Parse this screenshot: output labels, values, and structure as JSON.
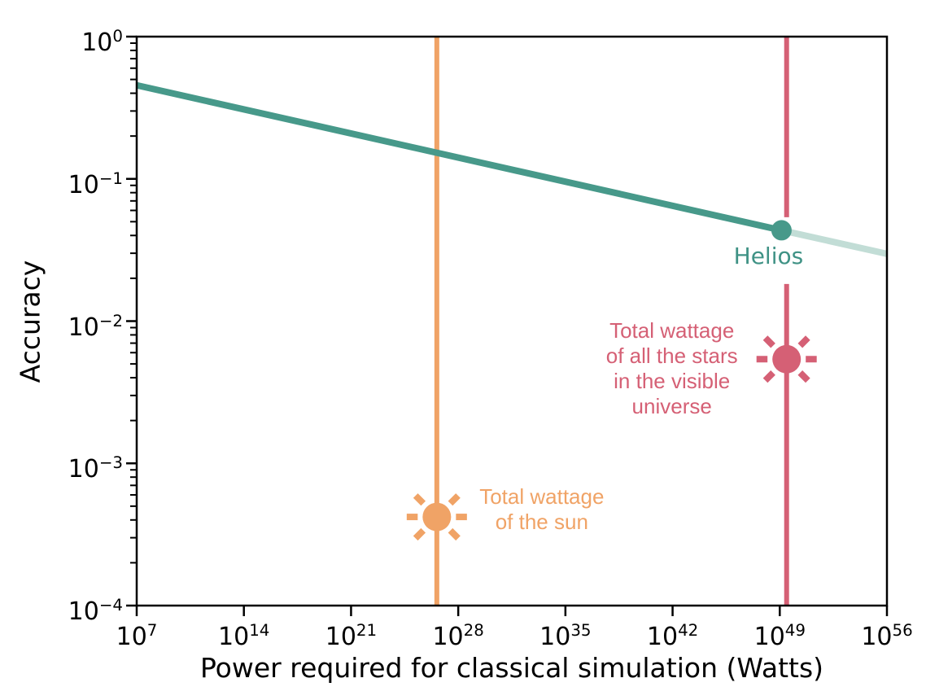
{
  "chart_data": {
    "type": "line",
    "title": "",
    "xlabel": "Power required for classical simulation (Watts)",
    "ylabel": "Accuracy",
    "x_scale": "log",
    "y_scale": "log",
    "xlim": [
      10000000.0,
      1e+56
    ],
    "ylim": [
      0.0001,
      1
    ],
    "grid": false,
    "legend": "none",
    "x_tick_exponents": [
      7,
      14,
      21,
      28,
      35,
      42,
      49,
      56
    ],
    "y_tick_exponents": [
      0,
      -1,
      -2,
      -3,
      -4
    ],
    "colors": {
      "teal": "#47998A",
      "teal_faded": "#C2DDD6",
      "teal_text": "#3F9285",
      "orange": "#F0A366",
      "rose": "#D56075",
      "axis": "#000000"
    },
    "series": [
      {
        "name": "accuracy-vs-power",
        "color": "#47998A",
        "opacity": 1,
        "points": [
          {
            "x": 10000000.0,
            "y": 0.455
          },
          {
            "x": 1.3e+49,
            "y": 0.0435
          }
        ]
      },
      {
        "name": "accuracy-vs-power-extrapolation",
        "color": "#C2DDD6",
        "opacity": 1,
        "points": [
          {
            "x": 1.3e+49,
            "y": 0.0435
          },
          {
            "x": 1e+56,
            "y": 0.0297
          }
        ]
      }
    ],
    "markers": [
      {
        "name": "helios",
        "label": "Helios",
        "x": 1.3e+49,
        "y": 0.0435,
        "color": "#47998A",
        "label_color": "#3F9285"
      }
    ],
    "vlines": [
      {
        "name": "sun",
        "x": 4e+26,
        "color": "#F0A366",
        "label": "Total wattage\nof the sun",
        "icon_y": 0.00042,
        "label_side": "right"
      },
      {
        "name": "stars",
        "x": 2.8e+49,
        "color": "#D56075",
        "label": "Total wattage\nof all the stars\nin the visible\nuniverse",
        "icon_y": 0.0054,
        "label_side": "left"
      }
    ]
  }
}
